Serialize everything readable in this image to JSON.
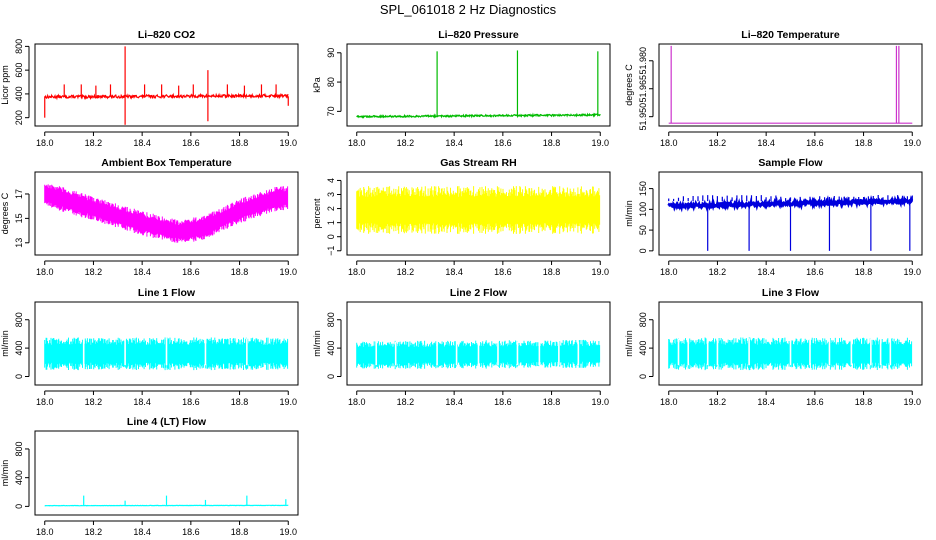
{
  "page_title": "SPL_061018  2 Hz Diagnostics",
  "chart_data": [
    {
      "id": "p1",
      "type": "line",
      "title": "Li–820 CO2",
      "ylabel": "Licor ppm",
      "color": "#ff0000",
      "x": [
        18.0,
        19.0
      ],
      "xticks": [
        "18.0",
        "18.2",
        "18.4",
        "18.6",
        "18.8",
        "19.0"
      ],
      "ylim": [
        130,
        820
      ],
      "yticks": [
        200,
        400,
        600,
        800
      ],
      "yticklabels": [
        "200",
        "400",
        "600",
        "800"
      ],
      "baseline": [
        375,
        385
      ],
      "noise": 12,
      "spikes": [
        {
          "x": 18.0,
          "y": 200
        },
        {
          "x": 18.08,
          "y": 480
        },
        {
          "x": 18.15,
          "y": 480
        },
        {
          "x": 18.21,
          "y": 470
        },
        {
          "x": 18.27,
          "y": 480
        },
        {
          "x": 18.33,
          "y": 800
        },
        {
          "x": 18.33,
          "y": 140
        },
        {
          "x": 18.41,
          "y": 480
        },
        {
          "x": 18.48,
          "y": 480
        },
        {
          "x": 18.55,
          "y": 470
        },
        {
          "x": 18.61,
          "y": 480
        },
        {
          "x": 18.67,
          "y": 600
        },
        {
          "x": 18.67,
          "y": 170
        },
        {
          "x": 18.75,
          "y": 480
        },
        {
          "x": 18.82,
          "y": 470
        },
        {
          "x": 18.89,
          "y": 480
        },
        {
          "x": 18.95,
          "y": 480
        },
        {
          "x": 19.0,
          "y": 300
        }
      ]
    },
    {
      "id": "p2",
      "type": "line",
      "title": "Li–820 Pressure",
      "ylabel": "kPa",
      "color": "#00bb00",
      "x": [
        18.0,
        19.0
      ],
      "xticks": [
        "18.0",
        "18.2",
        "18.4",
        "18.6",
        "18.8",
        "19.0"
      ],
      "ylim": [
        65,
        93
      ],
      "yticks": [
        70,
        80,
        90
      ],
      "yticklabels": [
        "70",
        "80",
        "90"
      ],
      "baseline": [
        68.2,
        68.8
      ],
      "noise": 0.3,
      "spikes": [
        {
          "x": 18.33,
          "y": 90.5
        },
        {
          "x": 18.66,
          "y": 90.8
        },
        {
          "x": 18.99,
          "y": 90.5
        }
      ]
    },
    {
      "id": "p3",
      "type": "line",
      "title": "Li–820 Temperature",
      "ylabel": "degrees C",
      "color": "#cc33cc",
      "x": [
        18.0,
        19.0
      ],
      "xticks": [
        "18.0",
        "18.2",
        "18.4",
        "18.6",
        "18.8",
        "19.0"
      ],
      "ylim": [
        51.945,
        51.989
      ],
      "yticks": [
        51.95,
        51.965,
        51.98
      ],
      "yticklabels": [
        "51.950",
        "51.965",
        "51.980"
      ],
      "baseline": [
        51.9465,
        51.9465
      ],
      "noise": 0,
      "spikes": [
        {
          "x": 18.01,
          "y": 51.988
        },
        {
          "x": 18.935,
          "y": 51.988
        },
        {
          "x": 18.945,
          "y": 51.988
        }
      ]
    },
    {
      "id": "p4",
      "type": "band",
      "title": "Ambient Box Temperature",
      "ylabel": "degrees C",
      "color": "#ff00ff",
      "x": [
        18.0,
        19.0
      ],
      "xticks": [
        "18.0",
        "18.2",
        "18.4",
        "18.6",
        "18.8",
        "19.0"
      ],
      "ylim": [
        12,
        18.8
      ],
      "yticks": [
        13,
        15,
        17
      ],
      "yticklabels": [
        "13",
        "15",
        "17"
      ],
      "center": [
        {
          "x": 18.0,
          "y": 17.0
        },
        {
          "x": 18.2,
          "y": 15.8
        },
        {
          "x": 18.4,
          "y": 14.6
        },
        {
          "x": 18.55,
          "y": 13.9
        },
        {
          "x": 18.65,
          "y": 14.2
        },
        {
          "x": 18.8,
          "y": 15.6
        },
        {
          "x": 18.95,
          "y": 16.6
        },
        {
          "x": 19.0,
          "y": 16.7
        }
      ],
      "halfwidth": 1.0
    },
    {
      "id": "p5",
      "type": "band",
      "title": "Gas Stream RH",
      "ylabel": "percent",
      "color": "#ffff00",
      "x": [
        18.0,
        19.0
      ],
      "xticks": [
        "18.0",
        "18.2",
        "18.4",
        "18.6",
        "18.8",
        "19.0"
      ],
      "ylim": [
        -1.3,
        4.6
      ],
      "yticks": [
        -1,
        0,
        1,
        2,
        3,
        4
      ],
      "yticklabels": [
        "−1",
        "0",
        "1",
        "2",
        "3",
        "4"
      ],
      "center": [
        {
          "x": 18.0,
          "y": 1.9
        },
        {
          "x": 19.0,
          "y": 1.9
        }
      ],
      "halfwidth": 1.7
    },
    {
      "id": "p6",
      "type": "line",
      "title": "Sample Flow",
      "ylabel": "ml/min",
      "color": "#0000dd",
      "x": [
        18.0,
        19.0
      ],
      "xticks": [
        "18.0",
        "18.2",
        "18.4",
        "18.6",
        "18.8",
        "19.0"
      ],
      "ylim": [
        -10,
        190
      ],
      "yticks": [
        0,
        50,
        100,
        150
      ],
      "yticklabels": [
        "0",
        "50",
        "100",
        "150"
      ],
      "baseline": [
        108,
        120
      ],
      "noise": 4,
      "comb": 0.02,
      "comb_top": 135,
      "spikes": [
        {
          "x": 18.16,
          "y": 0
        },
        {
          "x": 18.33,
          "y": 0
        },
        {
          "x": 18.5,
          "y": 0
        },
        {
          "x": 18.66,
          "y": 0
        },
        {
          "x": 18.83,
          "y": 0
        },
        {
          "x": 18.99,
          "y": 0
        }
      ]
    },
    {
      "id": "p7",
      "type": "band",
      "title": "Line 1 Flow",
      "ylabel": "ml/min",
      "color": "#00ffff",
      "x": [
        18.0,
        19.0
      ],
      "xticks": [
        "18.0",
        "18.2",
        "18.4",
        "18.6",
        "18.8",
        "19.0"
      ],
      "ylim": [
        -120,
        1050
      ],
      "yticks": [
        0,
        400,
        800
      ],
      "yticklabels": [
        "0",
        "400",
        "800"
      ],
      "center": [
        {
          "x": 18.0,
          "y": 320
        },
        {
          "x": 19.0,
          "y": 320
        }
      ],
      "halfwidth": 230,
      "gaps": [
        18.16,
        18.33,
        18.5,
        18.66,
        18.83
      ]
    },
    {
      "id": "p8",
      "type": "band",
      "title": "Line 2 Flow",
      "ylabel": "ml/min",
      "color": "#00ffff",
      "x": [
        18.0,
        19.0
      ],
      "xticks": [
        "18.0",
        "18.2",
        "18.4",
        "18.6",
        "18.8",
        "19.0"
      ],
      "ylim": [
        -120,
        1050
      ],
      "yticks": [
        0,
        400,
        800
      ],
      "yticklabels": [
        "0",
        "400",
        "800"
      ],
      "center": [
        {
          "x": 18.0,
          "y": 300
        },
        {
          "x": 19.0,
          "y": 320
        }
      ],
      "halfwidth": 200,
      "gaps": [
        18.08,
        18.16,
        18.33,
        18.41,
        18.5,
        18.58,
        18.66,
        18.75,
        18.83,
        18.91
      ]
    },
    {
      "id": "p9",
      "type": "band",
      "title": "Line 3 Flow",
      "ylabel": "ml/min",
      "color": "#00ffff",
      "x": [
        18.0,
        19.0
      ],
      "xticks": [
        "18.0",
        "18.2",
        "18.4",
        "18.6",
        "18.8",
        "19.0"
      ],
      "ylim": [
        -120,
        1050
      ],
      "yticks": [
        0,
        400,
        800
      ],
      "yticklabels": [
        "0",
        "400",
        "800"
      ],
      "center": [
        {
          "x": 18.0,
          "y": 320
        },
        {
          "x": 19.0,
          "y": 320
        }
      ],
      "halfwidth": 230,
      "gaps": [
        18.04,
        18.08,
        18.16,
        18.2,
        18.33,
        18.5,
        18.58,
        18.66,
        18.75,
        18.83,
        18.87,
        18.91
      ]
    },
    {
      "id": "p10",
      "type": "line",
      "title": "Line 4 (LT) Flow",
      "ylabel": "ml/min",
      "color": "#00ffff",
      "x": [
        18.0,
        19.0
      ],
      "xticks": [
        "18.0",
        "18.2",
        "18.4",
        "18.6",
        "18.8",
        "19.0"
      ],
      "ylim": [
        -120,
        1050
      ],
      "yticks": [
        0,
        400,
        800
      ],
      "yticklabels": [
        "0",
        "400",
        "800"
      ],
      "baseline": [
        10,
        14
      ],
      "noise": 2,
      "spikes": [
        {
          "x": 18.16,
          "y": 150
        },
        {
          "x": 18.33,
          "y": 80
        },
        {
          "x": 18.5,
          "y": 150
        },
        {
          "x": 18.66,
          "y": 90
        },
        {
          "x": 18.83,
          "y": 150
        },
        {
          "x": 18.99,
          "y": 100
        }
      ]
    }
  ]
}
